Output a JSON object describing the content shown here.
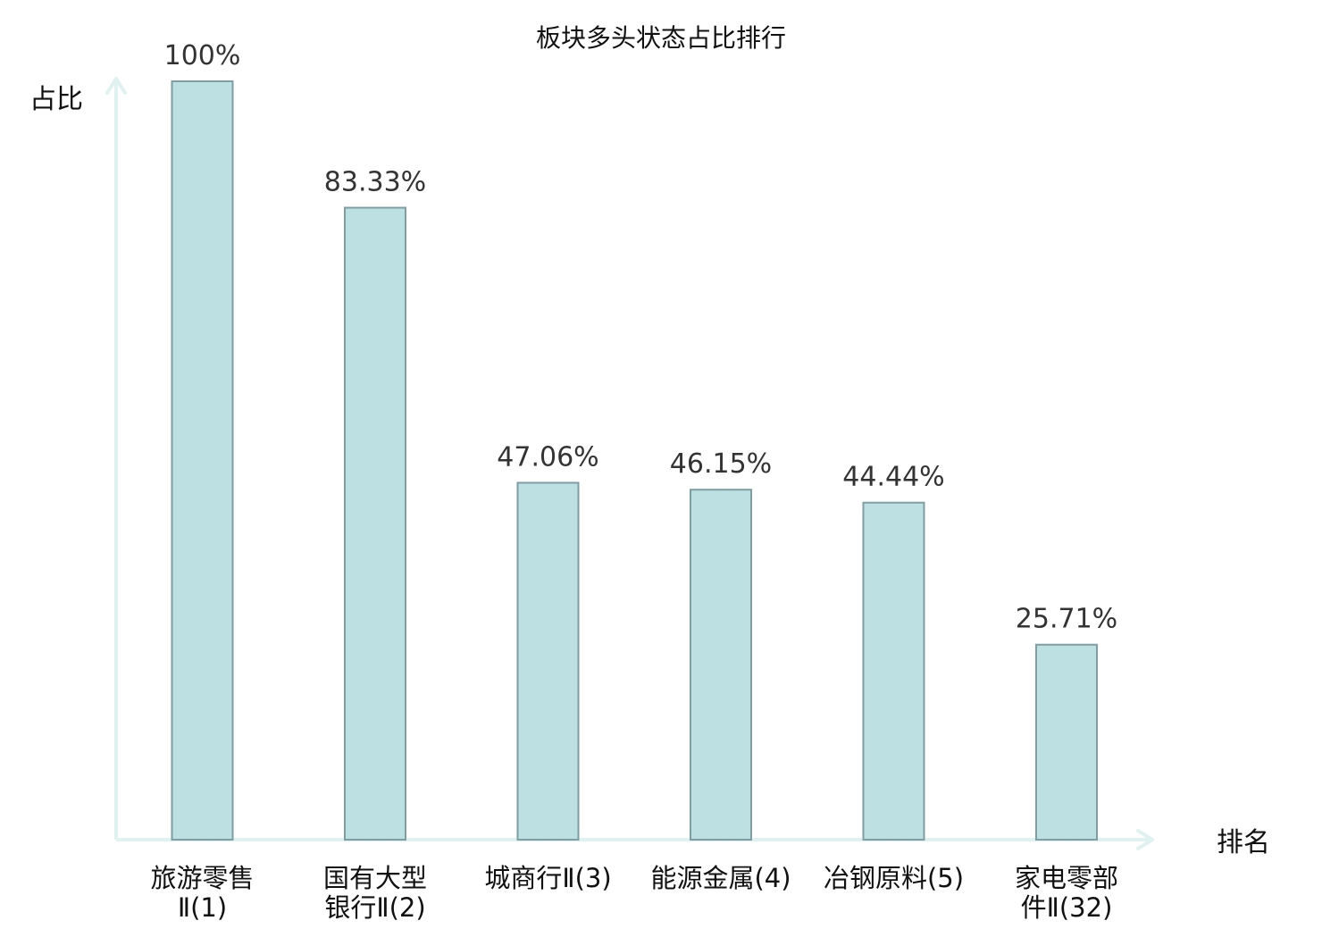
{
  "chart_data": {
    "type": "bar",
    "title": "板块多头状态占比排行",
    "ylabel": "占比",
    "xlabel": "排名",
    "ylim": [
      0,
      100
    ],
    "grid": false,
    "categories": [
      [
        "旅游零售",
        "Ⅱ(1)"
      ],
      [
        "国有大型",
        "银行Ⅱ(2)"
      ],
      [
        "城商行Ⅱ(3)"
      ],
      [
        "能源金属(4)"
      ],
      [
        "冶钢原料(5)"
      ],
      [
        "家电零部",
        "件Ⅱ(32)"
      ]
    ],
    "highlight_index": 5,
    "values": [
      100,
      83.33,
      47.06,
      46.15,
      44.44,
      25.71
    ],
    "value_labels": [
      "100%",
      "83.33%",
      "47.06%",
      "46.15%",
      "44.44%",
      "25.71%"
    ]
  },
  "colors": {
    "bar_fill": "#bde0e3",
    "bar_stroke": "#7f9ea3",
    "axis": "#dff2ef",
    "highlight": "#e41a1c",
    "text": "#111111",
    "value_text": "#333333"
  }
}
